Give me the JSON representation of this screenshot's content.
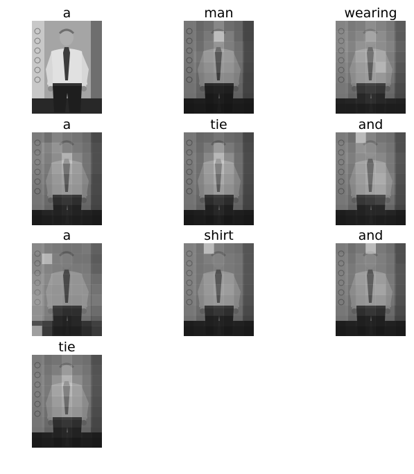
{
  "figure": {
    "panels": [
      {
        "word": "a",
        "attention": null
      },
      {
        "word": "man",
        "attention": [
          [
            0.1,
            0.12,
            0.2,
            0.45,
            0.18,
            0.1,
            0.08
          ],
          [
            0.1,
            0.15,
            0.3,
            0.95,
            0.35,
            0.12,
            0.08
          ],
          [
            0.12,
            0.18,
            0.35,
            0.55,
            0.35,
            0.2,
            0.1
          ],
          [
            0.1,
            0.25,
            0.35,
            0.4,
            0.38,
            0.22,
            0.1
          ],
          [
            0.08,
            0.18,
            0.25,
            0.35,
            0.3,
            0.18,
            0.08
          ],
          [
            0.06,
            0.1,
            0.15,
            0.2,
            0.18,
            0.12,
            0.06
          ],
          [
            0.05,
            0.08,
            0.1,
            0.12,
            0.1,
            0.08,
            0.05
          ],
          [
            0.03,
            0.05,
            0.06,
            0.08,
            0.06,
            0.05,
            0.03
          ],
          [
            0.02,
            0.03,
            0.04,
            0.05,
            0.04,
            0.03,
            0.02
          ]
        ]
      },
      {
        "word": "wearing",
        "attention": [
          [
            0.25,
            0.3,
            0.35,
            0.5,
            0.4,
            0.3,
            0.25
          ],
          [
            0.3,
            0.35,
            0.45,
            0.7,
            0.5,
            0.35,
            0.25
          ],
          [
            0.3,
            0.4,
            0.55,
            0.55,
            0.5,
            0.4,
            0.3
          ],
          [
            0.25,
            0.35,
            0.5,
            0.6,
            0.55,
            0.35,
            0.25
          ],
          [
            0.2,
            0.3,
            0.4,
            0.45,
            0.7,
            0.35,
            0.2
          ],
          [
            0.15,
            0.25,
            0.35,
            0.4,
            0.35,
            0.25,
            0.15
          ],
          [
            0.1,
            0.15,
            0.25,
            0.3,
            0.25,
            0.15,
            0.1
          ],
          [
            0.08,
            0.1,
            0.15,
            0.2,
            0.15,
            0.1,
            0.08
          ],
          [
            0.05,
            0.05,
            0.08,
            0.1,
            0.08,
            0.05,
            0.05
          ]
        ]
      },
      {
        "word": "a",
        "attention": [
          [
            0.15,
            0.2,
            0.4,
            0.3,
            0.25,
            0.15,
            0.1
          ],
          [
            0.2,
            0.4,
            0.55,
            0.35,
            0.3,
            0.2,
            0.15
          ],
          [
            0.25,
            0.35,
            0.5,
            0.85,
            0.45,
            0.25,
            0.15
          ],
          [
            0.2,
            0.3,
            0.45,
            0.6,
            0.4,
            0.25,
            0.15
          ],
          [
            0.15,
            0.25,
            0.35,
            0.45,
            0.35,
            0.2,
            0.1
          ],
          [
            0.1,
            0.2,
            0.3,
            0.35,
            0.3,
            0.15,
            0.1
          ],
          [
            0.08,
            0.15,
            0.2,
            0.25,
            0.2,
            0.12,
            0.08
          ],
          [
            0.05,
            0.1,
            0.12,
            0.15,
            0.12,
            0.08,
            0.05
          ],
          [
            0.03,
            0.05,
            0.08,
            0.1,
            0.08,
            0.05,
            0.03
          ]
        ]
      },
      {
        "word": "tie",
        "attention": [
          [
            0.1,
            0.12,
            0.15,
            0.25,
            0.15,
            0.1,
            0.08
          ],
          [
            0.12,
            0.15,
            0.3,
            0.6,
            0.3,
            0.15,
            0.1
          ],
          [
            0.15,
            0.2,
            0.45,
            0.9,
            0.5,
            0.2,
            0.12
          ],
          [
            0.12,
            0.2,
            0.4,
            0.7,
            0.45,
            0.2,
            0.12
          ],
          [
            0.1,
            0.18,
            0.35,
            0.55,
            0.35,
            0.18,
            0.1
          ],
          [
            0.08,
            0.15,
            0.25,
            0.4,
            0.25,
            0.15,
            0.08
          ],
          [
            0.06,
            0.1,
            0.18,
            0.25,
            0.18,
            0.1,
            0.06
          ],
          [
            0.04,
            0.06,
            0.1,
            0.15,
            0.1,
            0.06,
            0.04
          ],
          [
            0.02,
            0.04,
            0.05,
            0.08,
            0.05,
            0.04,
            0.02
          ]
        ]
      },
      {
        "word": "and",
        "attention": [
          [
            0.15,
            0.2,
            0.95,
            0.4,
            0.25,
            0.2,
            0.15
          ],
          [
            0.2,
            0.3,
            0.55,
            0.45,
            0.35,
            0.25,
            0.15
          ],
          [
            0.2,
            0.35,
            0.5,
            0.5,
            0.45,
            0.3,
            0.2
          ],
          [
            0.18,
            0.3,
            0.45,
            0.55,
            0.5,
            0.3,
            0.18
          ],
          [
            0.15,
            0.25,
            0.4,
            0.55,
            0.6,
            0.35,
            0.15
          ],
          [
            0.12,
            0.2,
            0.35,
            0.45,
            0.5,
            0.3,
            0.12
          ],
          [
            0.1,
            0.15,
            0.25,
            0.3,
            0.35,
            0.2,
            0.1
          ],
          [
            0.05,
            0.08,
            0.12,
            0.15,
            0.15,
            0.1,
            0.05
          ],
          [
            0.03,
            0.05,
            0.08,
            0.1,
            0.08,
            0.05,
            0.03
          ]
        ]
      },
      {
        "word": "a",
        "attention": [
          [
            0.3,
            0.35,
            0.3,
            0.25,
            0.25,
            0.3,
            0.3
          ],
          [
            0.25,
            0.9,
            0.35,
            0.3,
            0.25,
            0.25,
            0.25
          ],
          [
            0.3,
            0.4,
            0.35,
            0.3,
            0.3,
            0.3,
            0.3
          ],
          [
            0.4,
            0.45,
            0.35,
            0.3,
            0.3,
            0.35,
            0.4
          ],
          [
            0.45,
            0.4,
            0.3,
            0.3,
            0.3,
            0.35,
            0.45
          ],
          [
            0.5,
            0.4,
            0.3,
            0.25,
            0.25,
            0.35,
            0.5
          ],
          [
            0.4,
            0.35,
            0.25,
            0.2,
            0.2,
            0.3,
            0.4
          ],
          [
            0.4,
            0.3,
            0.15,
            0.12,
            0.15,
            0.2,
            0.3
          ],
          [
            0.95,
            0.25,
            0.1,
            0.08,
            0.1,
            0.15,
            0.25
          ]
        ]
      },
      {
        "word": "shirt",
        "attention": [
          [
            0.2,
            0.25,
            0.95,
            0.35,
            0.25,
            0.2,
            0.2
          ],
          [
            0.2,
            0.25,
            0.35,
            0.35,
            0.3,
            0.25,
            0.2
          ],
          [
            0.2,
            0.25,
            0.3,
            0.35,
            0.3,
            0.25,
            0.2
          ],
          [
            0.2,
            0.25,
            0.35,
            0.4,
            0.35,
            0.25,
            0.2
          ],
          [
            0.18,
            0.25,
            0.35,
            0.45,
            0.4,
            0.25,
            0.18
          ],
          [
            0.15,
            0.2,
            0.3,
            0.35,
            0.3,
            0.2,
            0.15
          ],
          [
            0.1,
            0.15,
            0.2,
            0.25,
            0.2,
            0.15,
            0.1
          ],
          [
            0.05,
            0.08,
            0.1,
            0.12,
            0.1,
            0.08,
            0.05
          ],
          [
            0.03,
            0.05,
            0.06,
            0.08,
            0.06,
            0.05,
            0.03
          ]
        ]
      },
      {
        "word": "and",
        "attention": [
          [
            0.15,
            0.2,
            0.3,
            0.95,
            0.3,
            0.2,
            0.15
          ],
          [
            0.2,
            0.25,
            0.4,
            0.4,
            0.35,
            0.25,
            0.15
          ],
          [
            0.2,
            0.3,
            0.4,
            0.4,
            0.35,
            0.25,
            0.2
          ],
          [
            0.2,
            0.3,
            0.4,
            0.45,
            0.4,
            0.3,
            0.2
          ],
          [
            0.18,
            0.25,
            0.35,
            0.45,
            0.5,
            0.3,
            0.18
          ],
          [
            0.15,
            0.2,
            0.3,
            0.35,
            0.35,
            0.25,
            0.15
          ],
          [
            0.1,
            0.15,
            0.2,
            0.25,
            0.2,
            0.15,
            0.1
          ],
          [
            0.05,
            0.08,
            0.1,
            0.12,
            0.1,
            0.08,
            0.05
          ],
          [
            0.03,
            0.05,
            0.06,
            0.08,
            0.06,
            0.05,
            0.03
          ]
        ]
      },
      {
        "word": "tie",
        "attention": [
          [
            0.15,
            0.2,
            0.25,
            0.4,
            0.25,
            0.2,
            0.15
          ],
          [
            0.18,
            0.25,
            0.35,
            0.6,
            0.35,
            0.25,
            0.18
          ],
          [
            0.2,
            0.3,
            0.55,
            0.85,
            0.5,
            0.3,
            0.2
          ],
          [
            0.18,
            0.3,
            0.5,
            0.7,
            0.45,
            0.3,
            0.18
          ],
          [
            0.15,
            0.25,
            0.4,
            0.55,
            0.4,
            0.25,
            0.15
          ],
          [
            0.12,
            0.2,
            0.3,
            0.4,
            0.3,
            0.2,
            0.12
          ],
          [
            0.08,
            0.15,
            0.2,
            0.25,
            0.2,
            0.15,
            0.08
          ],
          [
            0.05,
            0.08,
            0.12,
            0.15,
            0.12,
            0.08,
            0.05
          ],
          [
            0.03,
            0.05,
            0.06,
            0.08,
            0.06,
            0.05,
            0.03
          ]
        ]
      }
    ]
  }
}
